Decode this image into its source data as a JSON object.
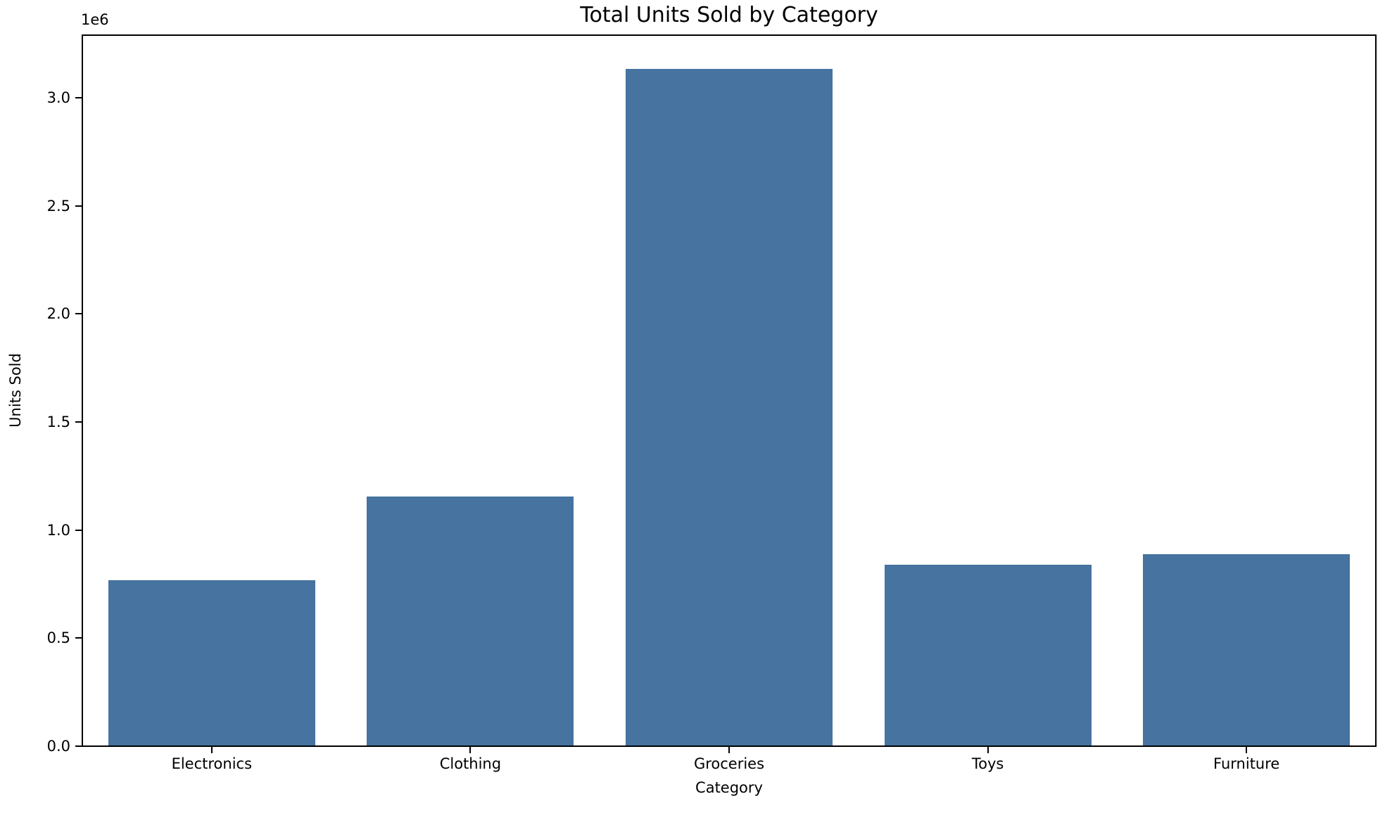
{
  "chart_data": {
    "type": "bar",
    "title": "Total Units Sold by Category",
    "xlabel": "Category",
    "ylabel": "Units Sold",
    "y_axis_offset_label": "1e6",
    "categories": [
      "Electronics",
      "Clothing",
      "Groceries",
      "Toys",
      "Furniture"
    ],
    "values": [
      768000,
      1155000,
      3134000,
      838000,
      887000
    ],
    "ylim": [
      0,
      3290000
    ],
    "ytick_values": [
      0,
      500000,
      1000000,
      1500000,
      2000000,
      2500000,
      3000000
    ],
    "ytick_labels": [
      "0.0",
      "0.5",
      "1.0",
      "1.5",
      "2.0",
      "2.5",
      "3.0"
    ],
    "bar_color": "#46739F",
    "bar_width_fraction": 0.8,
    "grid": false,
    "legend_position": "none"
  }
}
